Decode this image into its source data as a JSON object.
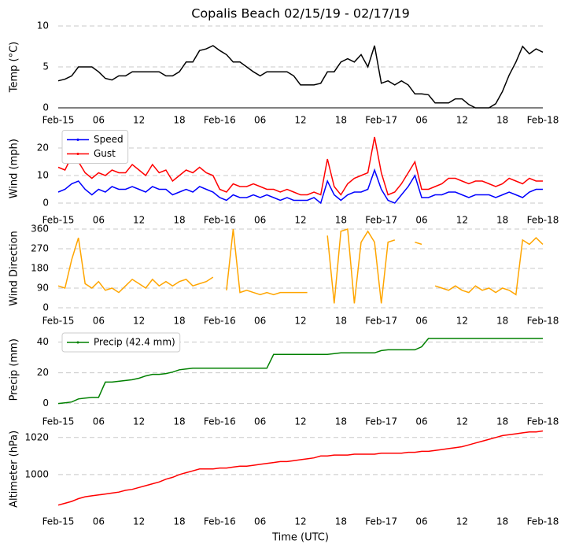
{
  "chart_data": [
    {
      "type": "line",
      "title": "Copalis Beach 02/15/19 - 02/17/19",
      "ylabel": "Temp (°C)",
      "x": [
        0,
        1,
        2,
        3,
        4,
        5,
        6,
        7,
        8,
        9,
        10,
        11,
        12,
        13,
        14,
        15,
        16,
        17,
        18,
        19,
        20,
        21,
        22,
        23,
        24,
        25,
        26,
        27,
        28,
        29,
        30,
        31,
        32,
        33,
        34,
        35,
        36,
        37,
        38,
        39,
        40,
        41,
        42,
        43,
        44,
        45,
        46,
        47,
        48,
        49,
        50,
        51,
        52,
        53,
        54,
        55,
        56,
        57,
        58,
        59,
        60,
        61,
        62,
        63,
        64,
        65,
        66,
        67,
        68,
        69,
        70,
        71,
        72
      ],
      "xlim": [
        0,
        72
      ],
      "xticks": [
        {
          "value": 0,
          "label": "Feb-15"
        },
        {
          "value": 6,
          "label": "06"
        },
        {
          "value": 12,
          "label": "12"
        },
        {
          "value": 18,
          "label": "18"
        },
        {
          "value": 24,
          "label": "Feb-16"
        },
        {
          "value": 30,
          "label": "06"
        },
        {
          "value": 36,
          "label": "12"
        },
        {
          "value": 42,
          "label": "18"
        },
        {
          "value": 48,
          "label": "Feb-17"
        },
        {
          "value": 54,
          "label": "06"
        },
        {
          "value": 60,
          "label": "12"
        },
        {
          "value": 66,
          "label": "18"
        },
        {
          "value": 72,
          "label": "Feb-18"
        }
      ],
      "ylim": [
        0,
        10
      ],
      "yticks": [
        0,
        5,
        10
      ],
      "grid": true,
      "series": [
        {
          "color": "#000000",
          "values": [
            3.3,
            3.5,
            3.9,
            5.0,
            5.0,
            5.0,
            4.4,
            3.6,
            3.4,
            3.9,
            3.9,
            4.4,
            4.4,
            4.4,
            4.4,
            4.4,
            3.9,
            3.9,
            4.4,
            5.6,
            5.6,
            7.0,
            7.2,
            7.6,
            7.0,
            6.5,
            5.6,
            5.6,
            5.0,
            4.4,
            3.9,
            4.4,
            4.4,
            4.4,
            4.4,
            3.9,
            2.8,
            2.8,
            2.8,
            3.0,
            4.4,
            4.4,
            5.6,
            6.0,
            5.6,
            6.5,
            5.0,
            7.6,
            3.0,
            3.3,
            2.8,
            3.3,
            2.8,
            1.7,
            1.7,
            1.6,
            0.6,
            0.6,
            0.6,
            1.1,
            1.1,
            0.4,
            0,
            0,
            0,
            0.5,
            2.0,
            4.0,
            5.6,
            7.5,
            6.6,
            7.2,
            6.8
          ]
        }
      ]
    },
    {
      "type": "line",
      "ylabel": "Wind (mph)",
      "x": [
        0,
        1,
        2,
        3,
        4,
        5,
        6,
        7,
        8,
        9,
        10,
        11,
        12,
        13,
        14,
        15,
        16,
        17,
        18,
        19,
        20,
        21,
        22,
        23,
        24,
        25,
        26,
        27,
        28,
        29,
        30,
        31,
        32,
        33,
        34,
        35,
        36,
        37,
        38,
        39,
        40,
        41,
        42,
        43,
        44,
        45,
        46,
        47,
        48,
        49,
        50,
        51,
        52,
        53,
        54,
        55,
        56,
        57,
        58,
        59,
        60,
        61,
        62,
        63,
        64,
        65,
        66,
        67,
        68,
        69,
        70,
        71,
        72
      ],
      "xlim": [
        0,
        72
      ],
      "xticks": [
        {
          "value": 0,
          "label": "Feb-15"
        },
        {
          "value": 6,
          "label": "06"
        },
        {
          "value": 12,
          "label": "12"
        },
        {
          "value": 18,
          "label": "18"
        },
        {
          "value": 24,
          "label": "Feb-16"
        },
        {
          "value": 30,
          "label": "06"
        },
        {
          "value": 36,
          "label": "12"
        },
        {
          "value": 42,
          "label": "18"
        },
        {
          "value": 48,
          "label": "Feb-17"
        },
        {
          "value": 54,
          "label": "06"
        },
        {
          "value": 60,
          "label": "12"
        },
        {
          "value": 66,
          "label": "18"
        },
        {
          "value": 72,
          "label": "Feb-18"
        }
      ],
      "ylim": [
        -2,
        27
      ],
      "yticks": [
        0,
        10,
        20
      ],
      "grid": true,
      "legend": "upper left",
      "series": [
        {
          "name": "Speed",
          "color": "#0000ff",
          "values": [
            4,
            5,
            7,
            8,
            5,
            3,
            5,
            4,
            6,
            5,
            5,
            6,
            5,
            4,
            6,
            5,
            5,
            3,
            4,
            5,
            4,
            6,
            5,
            4,
            2,
            1,
            3,
            2,
            2,
            3,
            2,
            3,
            2,
            1,
            2,
            1,
            1,
            1,
            2,
            0,
            8,
            3,
            1,
            3,
            4,
            4,
            5,
            12,
            5,
            1,
            0,
            3,
            6,
            10,
            2,
            2,
            3,
            3,
            4,
            4,
            3,
            2,
            3,
            3,
            3,
            2,
            3,
            4,
            3,
            2,
            4,
            5,
            5
          ]
        },
        {
          "name": "Gust",
          "color": "#ff0000",
          "values": [
            13,
            12,
            17,
            15,
            11,
            9,
            11,
            10,
            12,
            11,
            11,
            14,
            12,
            10,
            14,
            11,
            12,
            8,
            10,
            12,
            11,
            13,
            11,
            10,
            5,
            4,
            7,
            6,
            6,
            7,
            6,
            5,
            5,
            4,
            5,
            4,
            3,
            3,
            4,
            3,
            16,
            6,
            3,
            7,
            9,
            10,
            11,
            24,
            11,
            3,
            4,
            7,
            11,
            15,
            5,
            5,
            6,
            7,
            9,
            9,
            8,
            7,
            8,
            8,
            7,
            6,
            7,
            9,
            8,
            7,
            9,
            8,
            8
          ]
        }
      ]
    },
    {
      "type": "line",
      "ylabel": "Wind Direction",
      "x": [
        0,
        1,
        2,
        3,
        4,
        5,
        6,
        7,
        8,
        9,
        10,
        11,
        12,
        13,
        14,
        15,
        16,
        17,
        18,
        19,
        20,
        21,
        22,
        23,
        24,
        25,
        26,
        27,
        28,
        29,
        30,
        31,
        32,
        33,
        34,
        35,
        36,
        37,
        38,
        39,
        40,
        41,
        42,
        43,
        44,
        45,
        46,
        47,
        48,
        49,
        50,
        51,
        52,
        53,
        54,
        55,
        56,
        57,
        58,
        59,
        60,
        61,
        62,
        63,
        64,
        65,
        66,
        67,
        68,
        69,
        70,
        71,
        72
      ],
      "xlim": [
        0,
        72
      ],
      "xticks": [
        {
          "value": 0,
          "label": "Feb-15"
        },
        {
          "value": 6,
          "label": "06"
        },
        {
          "value": 12,
          "label": "12"
        },
        {
          "value": 18,
          "label": "18"
        },
        {
          "value": 24,
          "label": "Feb-16"
        },
        {
          "value": 30,
          "label": "06"
        },
        {
          "value": 36,
          "label": "12"
        },
        {
          "value": 42,
          "label": "18"
        },
        {
          "value": 48,
          "label": "Feb-17"
        },
        {
          "value": 54,
          "label": "06"
        },
        {
          "value": 60,
          "label": "12"
        },
        {
          "value": 66,
          "label": "18"
        },
        {
          "value": 72,
          "label": "Feb-18"
        }
      ],
      "ylim": [
        0,
        360
      ],
      "yticks": [
        0,
        90,
        180,
        270,
        360
      ],
      "grid": true,
      "series": [
        {
          "color": "#ffa500",
          "values": [
            100,
            90,
            220,
            320,
            110,
            90,
            120,
            80,
            90,
            70,
            100,
            130,
            110,
            90,
            130,
            100,
            120,
            100,
            120,
            130,
            100,
            110,
            120,
            140,
            null,
            80,
            360,
            70,
            80,
            70,
            60,
            70,
            60,
            70,
            70,
            70,
            70,
            70,
            null,
            null,
            330,
            20,
            350,
            360,
            20,
            300,
            350,
            300,
            20,
            300,
            310,
            null,
            null,
            300,
            290,
            null,
            100,
            90,
            80,
            100,
            80,
            70,
            100,
            80,
            90,
            70,
            90,
            80,
            60,
            310,
            290,
            320,
            290
          ]
        }
      ]
    },
    {
      "type": "line",
      "ylabel": "Precip (mm)",
      "x": [
        0,
        1,
        2,
        3,
        4,
        5,
        6,
        7,
        8,
        9,
        10,
        11,
        12,
        13,
        14,
        15,
        16,
        17,
        18,
        19,
        20,
        21,
        22,
        23,
        24,
        25,
        26,
        27,
        28,
        29,
        30,
        31,
        32,
        33,
        34,
        35,
        36,
        37,
        38,
        39,
        40,
        41,
        42,
        43,
        44,
        45,
        46,
        47,
        48,
        49,
        50,
        51,
        52,
        53,
        54,
        55,
        56,
        57,
        58,
        59,
        60,
        61,
        62,
        63,
        64,
        65,
        66,
        67,
        68,
        69,
        70,
        71,
        72
      ],
      "xlim": [
        0,
        72
      ],
      "xticks": [
        {
          "value": 0,
          "label": "Feb-15"
        },
        {
          "value": 6,
          "label": "06"
        },
        {
          "value": 12,
          "label": "12"
        },
        {
          "value": 18,
          "label": "18"
        },
        {
          "value": 24,
          "label": "Feb-16"
        },
        {
          "value": 30,
          "label": "06"
        },
        {
          "value": 36,
          "label": "12"
        },
        {
          "value": 42,
          "label": "18"
        },
        {
          "value": 48,
          "label": "Feb-17"
        },
        {
          "value": 54,
          "label": "06"
        },
        {
          "value": 60,
          "label": "12"
        },
        {
          "value": 66,
          "label": "18"
        },
        {
          "value": 72,
          "label": "Feb-18"
        }
      ],
      "ylim": [
        -3,
        47
      ],
      "yticks": [
        0,
        20,
        40
      ],
      "grid": true,
      "legend": "upper left",
      "series": [
        {
          "name": "Precip (42.4 mm)",
          "color": "#008000",
          "values": [
            0,
            0.5,
            1,
            3,
            3.5,
            4,
            4,
            14,
            14,
            14.5,
            15,
            15.5,
            16.5,
            18,
            19,
            19,
            19.5,
            20.5,
            22,
            22.5,
            23,
            23,
            23,
            23,
            23,
            23,
            23,
            23,
            23,
            23,
            23,
            23,
            32,
            32,
            32,
            32,
            32,
            32,
            32,
            32,
            32,
            32.5,
            33,
            33,
            33,
            33,
            33,
            33,
            34.5,
            35,
            35,
            35,
            35,
            35,
            37,
            42.4,
            42.4,
            42.4,
            42.4,
            42.4,
            42.4,
            42.4,
            42.4,
            42.4,
            42.4,
            42.4,
            42.4,
            42.4,
            42.4,
            42.4,
            42.4,
            42.4,
            42.4
          ]
        }
      ]
    },
    {
      "type": "line",
      "ylabel": "Altimeter (hPa)",
      "xlabel": "Time (UTC)",
      "x": [
        0,
        1,
        2,
        3,
        4,
        5,
        6,
        7,
        8,
        9,
        10,
        11,
        12,
        13,
        14,
        15,
        16,
        17,
        18,
        19,
        20,
        21,
        22,
        23,
        24,
        25,
        26,
        27,
        28,
        29,
        30,
        31,
        32,
        33,
        34,
        35,
        36,
        37,
        38,
        39,
        40,
        41,
        42,
        43,
        44,
        45,
        46,
        47,
        48,
        49,
        50,
        51,
        52,
        53,
        54,
        55,
        56,
        57,
        58,
        59,
        60,
        61,
        62,
        63,
        64,
        65,
        66,
        67,
        68,
        69,
        70,
        71,
        72
      ],
      "xlim": [
        0,
        72
      ],
      "xticks": [
        {
          "value": 0,
          "label": "Feb-15"
        },
        {
          "value": 6,
          "label": "06"
        },
        {
          "value": 12,
          "label": "12"
        },
        {
          "value": 18,
          "label": "18"
        },
        {
          "value": 24,
          "label": "Feb-16"
        },
        {
          "value": 30,
          "label": "06"
        },
        {
          "value": 36,
          "label": "12"
        },
        {
          "value": 42,
          "label": "18"
        },
        {
          "value": 48,
          "label": "Feb-17"
        },
        {
          "value": 54,
          "label": "06"
        },
        {
          "value": 60,
          "label": "12"
        },
        {
          "value": 66,
          "label": "18"
        },
        {
          "value": 72,
          "label": "Feb-18"
        }
      ],
      "ylim": [
        981,
        1025
      ],
      "yticks": [
        1000,
        1020
      ],
      "grid": true,
      "series": [
        {
          "color": "#ff0000",
          "values": [
            983.5,
            984.5,
            985.5,
            987,
            988,
            988.5,
            989,
            989.5,
            990,
            990.5,
            991.5,
            992,
            993,
            994,
            995,
            996,
            997.5,
            998.5,
            1000,
            1001,
            1002,
            1003,
            1003,
            1003,
            1003.5,
            1003.5,
            1004,
            1004.5,
            1004.5,
            1005,
            1005.5,
            1006,
            1006.5,
            1007,
            1007,
            1007.5,
            1008,
            1008.5,
            1009,
            1010,
            1010,
            1010.5,
            1010.5,
            1010.5,
            1011,
            1011,
            1011,
            1011,
            1011.5,
            1011.5,
            1011.5,
            1011.5,
            1012,
            1012,
            1012.5,
            1012.5,
            1013,
            1013.5,
            1014,
            1014.5,
            1015,
            1016,
            1017,
            1018,
            1019,
            1020,
            1021,
            1021.5,
            1022,
            1022.5,
            1023,
            1023,
            1023.5
          ]
        }
      ]
    }
  ]
}
